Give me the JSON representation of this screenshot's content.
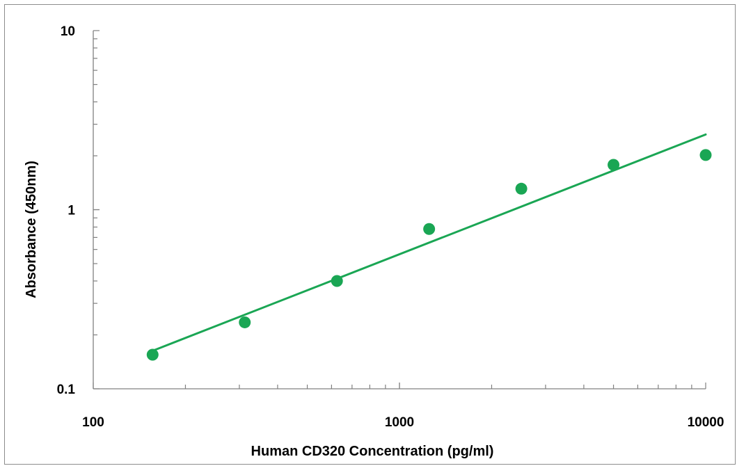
{
  "chart_data": {
    "type": "scatter",
    "title": "",
    "xlabel": "Human CD320 Concentration (pg/ml)",
    "ylabel": "Absorbance (450nm)",
    "x_scale": "log",
    "y_scale": "log",
    "xlim": [
      100,
      10000
    ],
    "ylim": [
      0.1,
      10
    ],
    "x_ticks": [
      "100",
      "1000",
      "10000"
    ],
    "y_ticks": [
      "0.1",
      "1",
      "10"
    ],
    "grid": false,
    "legend": "none",
    "series": [
      {
        "color": "#1aa654",
        "marker": "circle",
        "x": [
          156.25,
          312.5,
          625,
          1250,
          2500,
          5000,
          10000
        ],
        "y": [
          0.155,
          0.235,
          0.4,
          0.78,
          1.31,
          1.78,
          2.02
        ]
      }
    ],
    "fit_line": {
      "color": "#1aa654",
      "x": [
        156.25,
        10000
      ],
      "y": [
        0.163,
        2.63
      ]
    }
  }
}
